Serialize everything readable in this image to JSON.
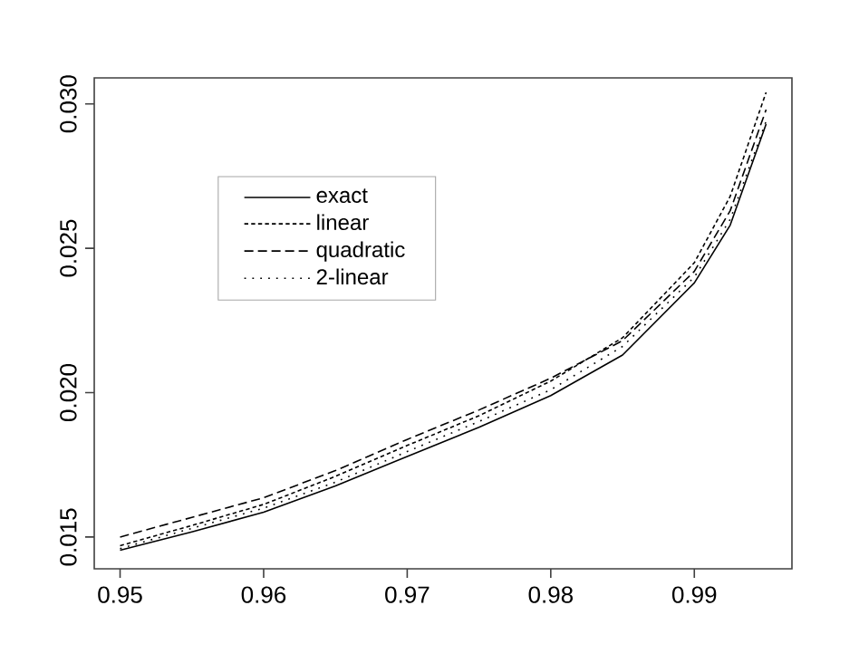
{
  "chart_data": {
    "type": "line",
    "x": [
      0.95,
      0.955,
      0.96,
      0.965,
      0.97,
      0.975,
      0.98,
      0.985,
      0.99,
      0.9925,
      0.995
    ],
    "series": [
      {
        "name": "exact",
        "color": "#000000",
        "line_style": "solid",
        "values": [
          0.01454,
          0.01518,
          0.01586,
          0.01677,
          0.01779,
          0.0188,
          0.0199,
          0.0213,
          0.0238,
          0.0258,
          0.0293
        ]
      },
      {
        "name": "linear",
        "color": "#000000",
        "line_style": "dashed",
        "values": [
          0.0147,
          0.0154,
          0.01613,
          0.0171,
          0.01817,
          0.0192,
          0.0204,
          0.0219,
          0.0245,
          0.0268,
          0.0304
        ]
      },
      {
        "name": "quadratic",
        "color": "#000000",
        "line_style": "dashed",
        "values": [
          0.015,
          0.01568,
          0.01636,
          0.0173,
          0.01838,
          0.0194,
          0.0205,
          0.0218,
          0.0242,
          0.0263,
          0.0298
        ]
      },
      {
        "name": "2-linear",
        "color": "#000000",
        "line_style": "dotted",
        "values": [
          0.0146,
          0.0153,
          0.016,
          0.0169,
          0.01796,
          0.019,
          0.0201,
          0.0216,
          0.024,
          0.026,
          0.0294
        ]
      }
    ],
    "xlim": [
      0.9482,
      0.9968
    ],
    "ylim": [
      0.0139,
      0.0309
    ],
    "xticks": [
      0.95,
      0.96,
      0.97,
      0.98,
      0.99
    ],
    "yticks": [
      0.015,
      {
        "value": 0.02,
        "label": "0.020"
      },
      0.025,
      {
        "value": 0.03,
        "label": "0.030"
      }
    ],
    "legend": "top left",
    "grid": false,
    "marker": "none"
  }
}
